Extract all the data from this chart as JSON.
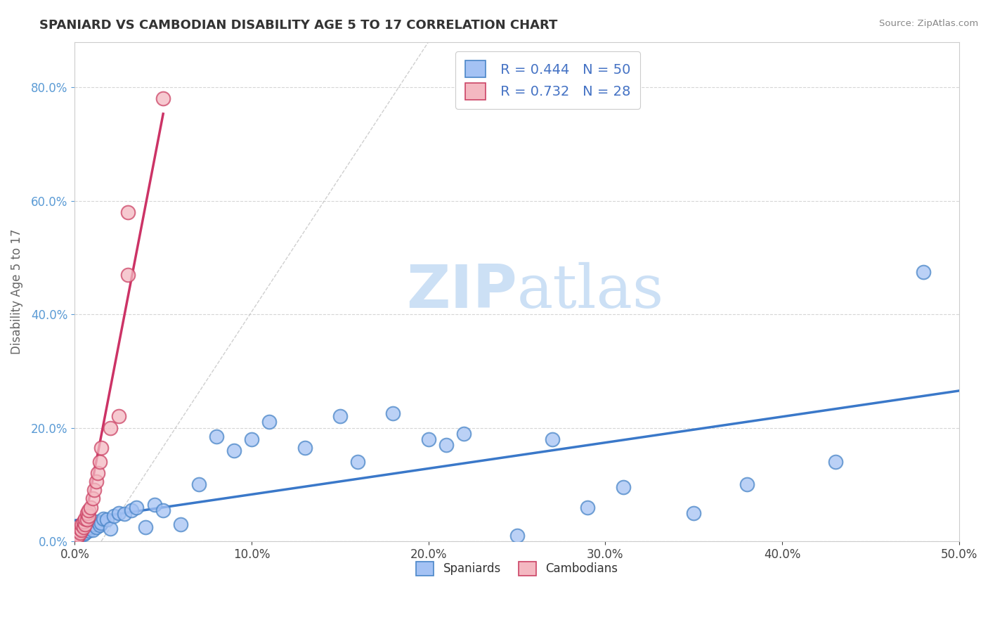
{
  "title": "SPANIARD VS CAMBODIAN DISABILITY AGE 5 TO 17 CORRELATION CHART",
  "source": "Source: ZipAtlas.com",
  "ylabel": "Disability Age 5 to 17",
  "xlim": [
    0.0,
    0.5
  ],
  "ylim": [
    0.0,
    0.88
  ],
  "xtick_vals": [
    0.0,
    0.1,
    0.2,
    0.3,
    0.4,
    0.5
  ],
  "ytick_vals": [
    0.0,
    0.2,
    0.4,
    0.6,
    0.8
  ],
  "r_spaniard": 0.444,
  "n_spaniard": 50,
  "r_cambodian": 0.732,
  "n_cambodian": 28,
  "blue_color": "#a4c2f4",
  "pink_color": "#f4b8c1",
  "blue_edge_color": "#4a86c8",
  "pink_edge_color": "#cc4466",
  "blue_line_color": "#3a78c9",
  "pink_line_color": "#cc3366",
  "diag_color": "#bbbbbb",
  "watermark_color": "#cce0f5",
  "spaniard_x": [
    0.001,
    0.002,
    0.002,
    0.003,
    0.003,
    0.004,
    0.005,
    0.005,
    0.006,
    0.007,
    0.008,
    0.009,
    0.01,
    0.011,
    0.012,
    0.013,
    0.014,
    0.015,
    0.016,
    0.018,
    0.02,
    0.022,
    0.025,
    0.028,
    0.032,
    0.035,
    0.04,
    0.045,
    0.05,
    0.06,
    0.07,
    0.08,
    0.09,
    0.1,
    0.11,
    0.13,
    0.15,
    0.16,
    0.18,
    0.2,
    0.21,
    0.22,
    0.25,
    0.27,
    0.29,
    0.31,
    0.35,
    0.38,
    0.43,
    0.48
  ],
  "spaniard_y": [
    0.005,
    0.008,
    0.012,
    0.01,
    0.015,
    0.018,
    0.012,
    0.02,
    0.015,
    0.022,
    0.018,
    0.025,
    0.02,
    0.03,
    0.025,
    0.035,
    0.028,
    0.032,
    0.04,
    0.038,
    0.022,
    0.045,
    0.05,
    0.048,
    0.055,
    0.06,
    0.025,
    0.065,
    0.055,
    0.03,
    0.1,
    0.185,
    0.16,
    0.18,
    0.21,
    0.165,
    0.22,
    0.14,
    0.225,
    0.18,
    0.17,
    0.19,
    0.01,
    0.18,
    0.06,
    0.095,
    0.05,
    0.1,
    0.14,
    0.475
  ],
  "cambodian_x": [
    0.001,
    0.001,
    0.002,
    0.002,
    0.003,
    0.003,
    0.004,
    0.004,
    0.005,
    0.005,
    0.006,
    0.006,
    0.007,
    0.007,
    0.008,
    0.008,
    0.009,
    0.01,
    0.011,
    0.012,
    0.013,
    0.014,
    0.015,
    0.02,
    0.025,
    0.03,
    0.05,
    0.03
  ],
  "cambodian_y": [
    0.005,
    0.012,
    0.01,
    0.018,
    0.015,
    0.022,
    0.02,
    0.03,
    0.025,
    0.035,
    0.03,
    0.04,
    0.038,
    0.05,
    0.045,
    0.055,
    0.06,
    0.075,
    0.09,
    0.105,
    0.12,
    0.14,
    0.165,
    0.2,
    0.22,
    0.58,
    0.78,
    0.47
  ]
}
